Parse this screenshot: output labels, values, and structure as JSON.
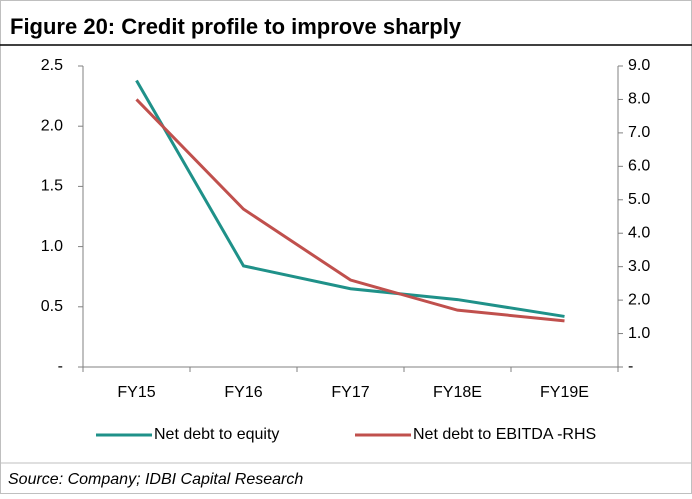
{
  "chart_data": {
    "type": "line",
    "title": "Figure 20: Credit profile to improve sharply",
    "source": "Source: Company; IDBI Capital Research",
    "categories": [
      "FY15",
      "FY16",
      "FY17",
      "FY18E",
      "FY19E"
    ],
    "series": [
      {
        "name": "Net debt to equity",
        "color": "#1f9189",
        "values": [
          2.38,
          0.84,
          0.65,
          0.56,
          0.42
        ]
      },
      {
        "name": "Net debt to EBITDA -RHS",
        "color": "#c0504d",
        "axis": "y2",
        "values": [
          8.0,
          4.72,
          2.6,
          1.7,
          1.38
        ]
      }
    ],
    "ylim": [
      0,
      2.5
    ],
    "yticks": [
      {
        "value": 0,
        "label": "-"
      },
      0.5,
      {
        "value": 1,
        "label": "1.0"
      },
      1.5,
      {
        "value": 2,
        "label": "2.0"
      },
      2.5
    ],
    "y2lim": [
      0,
      9
    ],
    "y2ticks": [
      {
        "value": 0,
        "label": "-"
      },
      {
        "value": 1,
        "label": "1.0"
      },
      {
        "value": 2,
        "label": "2.0"
      },
      {
        "value": 3,
        "label": "3.0"
      },
      {
        "value": 4,
        "label": "4.0"
      },
      {
        "value": 5,
        "label": "5.0"
      },
      {
        "value": 6,
        "label": "6.0"
      },
      {
        "value": 7,
        "label": "7.0"
      },
      {
        "value": 8,
        "label": "8.0"
      },
      {
        "value": 9,
        "label": "9.0"
      }
    ],
    "legend": "bottom"
  }
}
